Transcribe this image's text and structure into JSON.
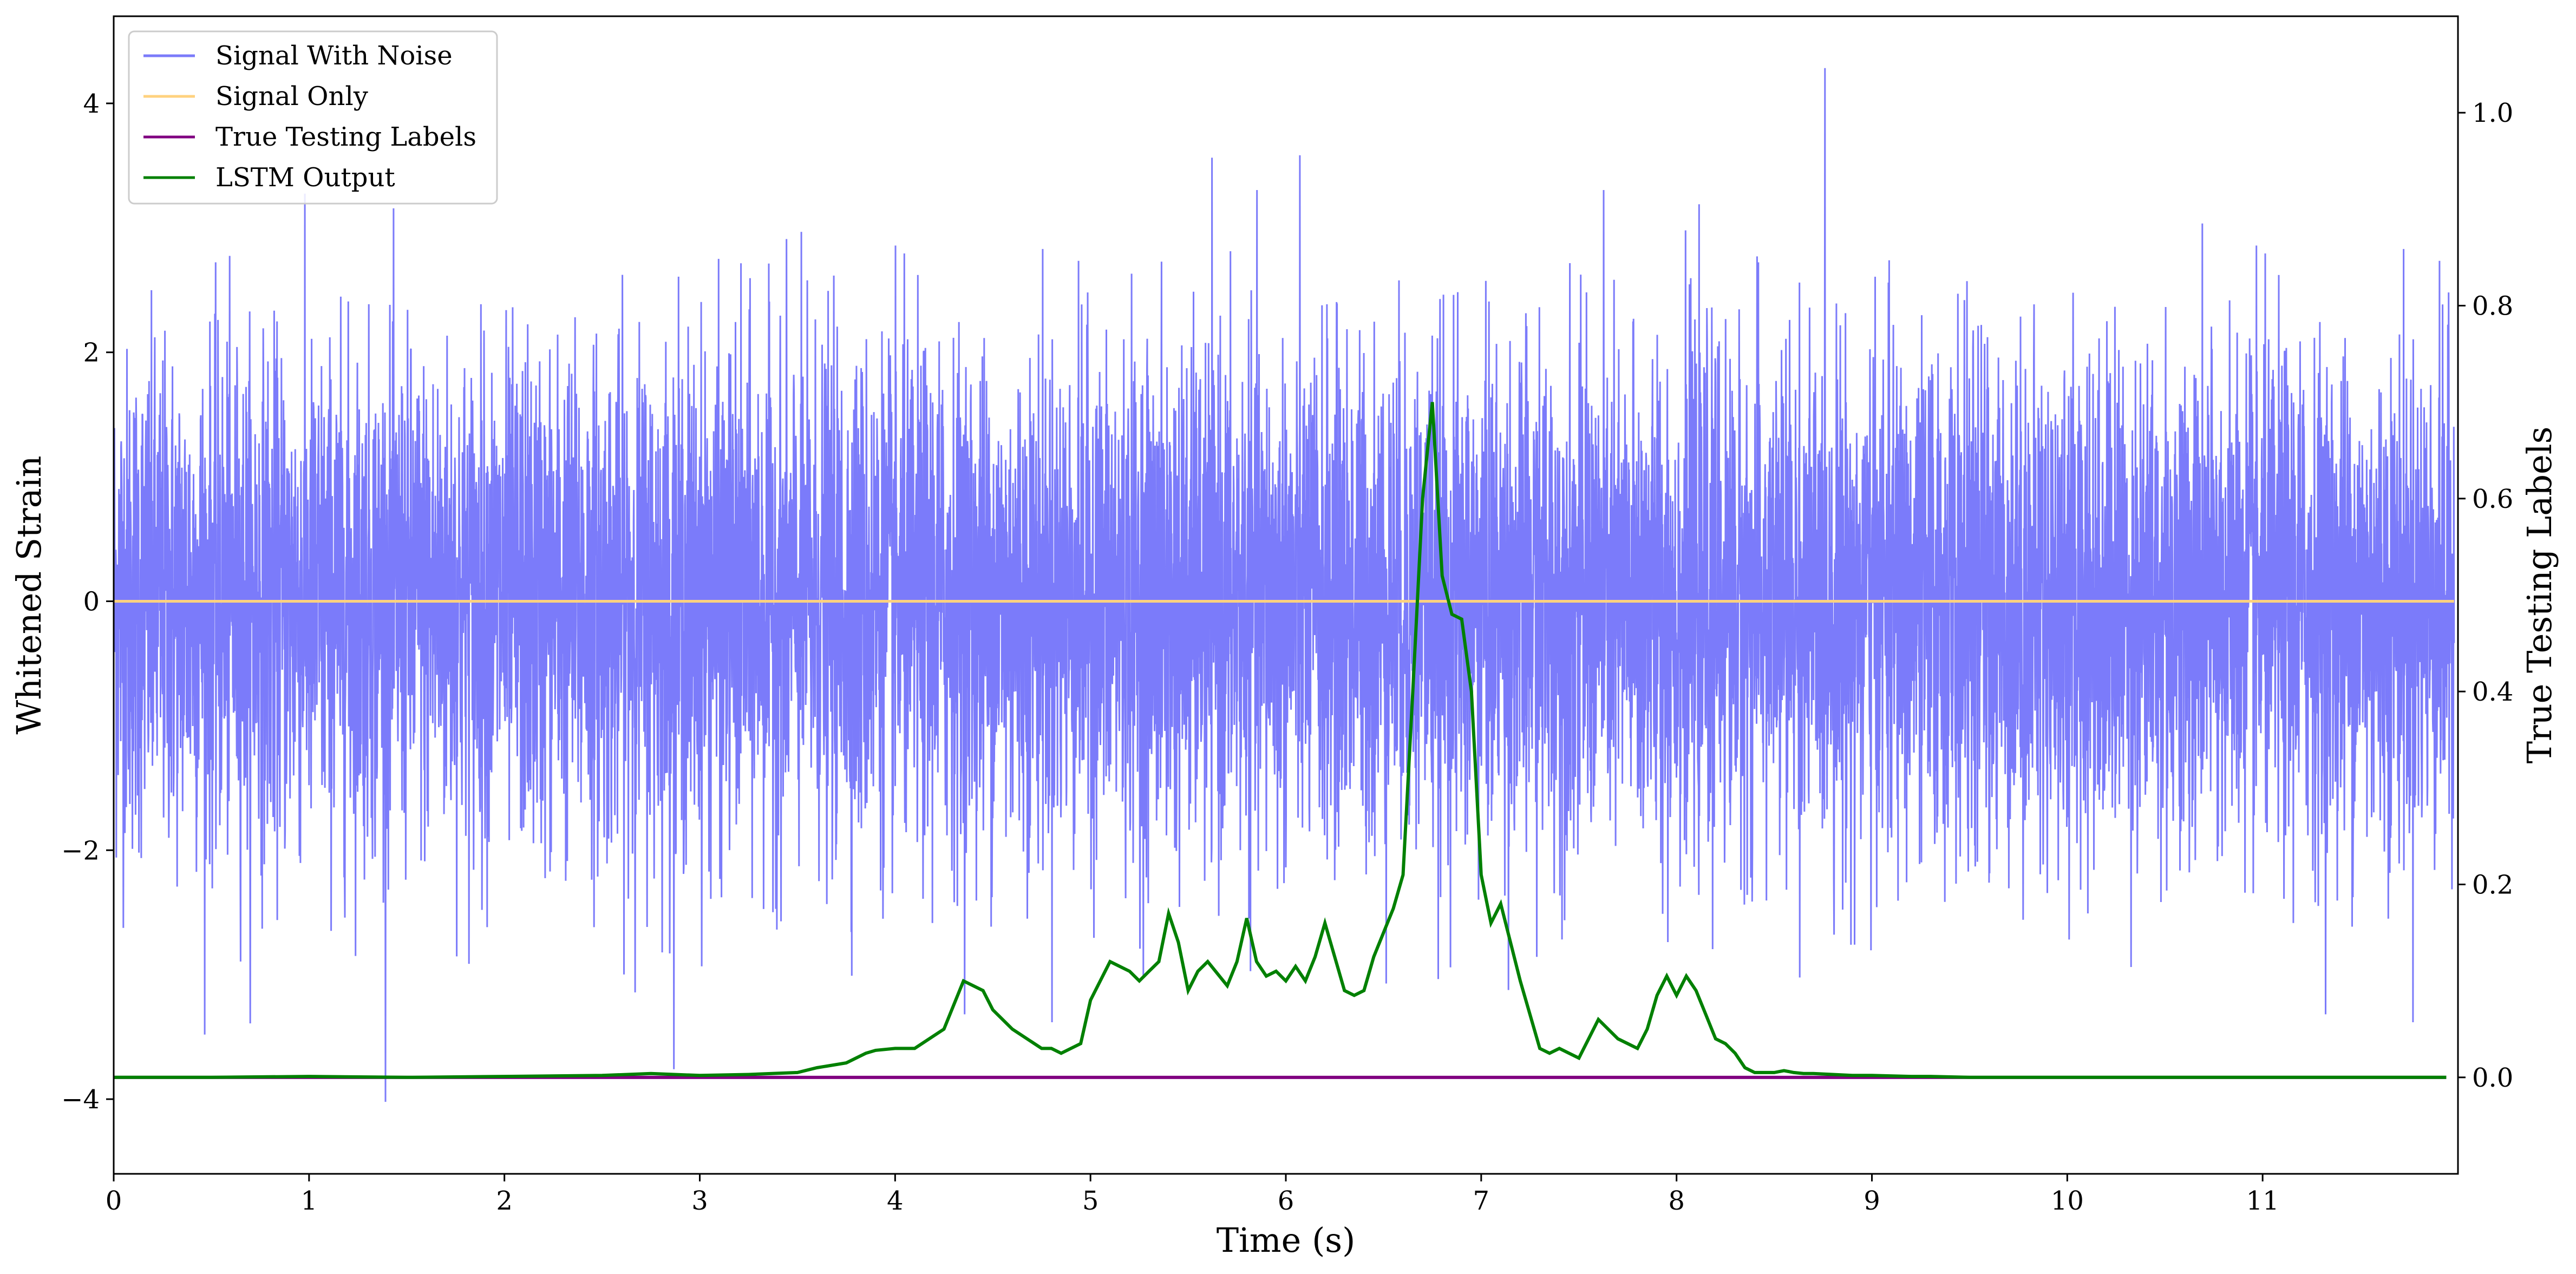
{
  "chart_data": {
    "type": "line",
    "xlabel": "Time (s)",
    "ylabel_left": "Whitened Strain",
    "ylabel_right": "True Testing Labels",
    "xlim": [
      0,
      12
    ],
    "ylim_left": [
      -4.6,
      4.7
    ],
    "ylim_right": [
      -0.1,
      1.1
    ],
    "x_ticks": [
      0,
      1,
      2,
      3,
      4,
      5,
      6,
      7,
      8,
      9,
      10,
      11
    ],
    "y_ticks_left": [
      -4,
      -2,
      0,
      2,
      4
    ],
    "y_ticks_right": [
      0.0,
      0.2,
      0.4,
      0.6,
      0.8,
      1.0
    ],
    "y_tick_labels_left": [
      "−4",
      "−2",
      "0",
      "2",
      "4"
    ],
    "y_tick_labels_right": [
      "0.0",
      "0.2",
      "0.4",
      "0.6",
      "0.8",
      "1.0"
    ],
    "grid": false,
    "legend_position": "top-left",
    "legend": [
      "Signal With Noise",
      "Signal Only",
      "True Testing Labels",
      "LSTM Output"
    ],
    "series": [
      {
        "name": "Signal With Noise",
        "axis": "left",
        "color": "#7b7bfa",
        "kind": "noise",
        "mean": 0.0,
        "typical_range": [
          -2.5,
          2.5
        ],
        "extreme_range": [
          -4.2,
          4.3
        ]
      },
      {
        "name": "Signal Only",
        "axis": "left",
        "color": "#ffd27f",
        "x": [
          0,
          12
        ],
        "y": [
          0,
          0
        ]
      },
      {
        "name": "True Testing Labels",
        "axis": "right",
        "color": "#800080",
        "x": [
          0,
          12
        ],
        "y": [
          0,
          0
        ]
      },
      {
        "name": "LSTM Output",
        "axis": "right",
        "color": "#008000",
        "x": [
          0,
          0.5,
          1.0,
          1.5,
          2.0,
          2.5,
          2.75,
          3.0,
          3.25,
          3.5,
          3.6,
          3.75,
          3.85,
          3.9,
          4.0,
          4.1,
          4.25,
          4.35,
          4.45,
          4.5,
          4.6,
          4.75,
          4.8,
          4.85,
          4.95,
          5.0,
          5.1,
          5.2,
          5.25,
          5.3,
          5.35,
          5.4,
          5.45,
          5.5,
          5.55,
          5.6,
          5.7,
          5.75,
          5.8,
          5.85,
          5.9,
          5.95,
          6.0,
          6.05,
          6.1,
          6.15,
          6.2,
          6.3,
          6.35,
          6.4,
          6.45,
          6.5,
          6.55,
          6.6,
          6.65,
          6.7,
          6.75,
          6.8,
          6.85,
          6.9,
          6.95,
          7.0,
          7.05,
          7.1,
          7.2,
          7.3,
          7.35,
          7.4,
          7.45,
          7.5,
          7.55,
          7.6,
          7.7,
          7.75,
          7.8,
          7.85,
          7.9,
          7.95,
          8.0,
          8.05,
          8.1,
          8.15,
          8.2,
          8.25,
          8.3,
          8.35,
          8.4,
          8.5,
          8.55,
          8.6,
          8.65,
          8.7,
          8.8,
          8.9,
          9.0,
          9.2,
          9.3,
          9.5,
          10.0,
          10.5,
          11.0,
          11.5,
          11.94
        ],
        "y": [
          0.0,
          0.0,
          0.001,
          0.0,
          0.001,
          0.002,
          0.004,
          0.002,
          0.003,
          0.005,
          0.01,
          0.015,
          0.025,
          0.028,
          0.03,
          0.03,
          0.05,
          0.1,
          0.09,
          0.07,
          0.05,
          0.03,
          0.03,
          0.025,
          0.035,
          0.08,
          0.12,
          0.11,
          0.1,
          0.11,
          0.12,
          0.17,
          0.14,
          0.09,
          0.11,
          0.12,
          0.095,
          0.12,
          0.165,
          0.12,
          0.105,
          0.11,
          0.1,
          0.115,
          0.1,
          0.125,
          0.16,
          0.09,
          0.085,
          0.09,
          0.125,
          0.15,
          0.175,
          0.21,
          0.4,
          0.6,
          0.7,
          0.52,
          0.48,
          0.475,
          0.4,
          0.21,
          0.16,
          0.18,
          0.1,
          0.03,
          0.025,
          0.03,
          0.025,
          0.02,
          0.04,
          0.06,
          0.04,
          0.035,
          0.03,
          0.05,
          0.085,
          0.105,
          0.085,
          0.105,
          0.09,
          0.065,
          0.04,
          0.035,
          0.025,
          0.01,
          0.005,
          0.005,
          0.007,
          0.005,
          0.004,
          0.004,
          0.003,
          0.002,
          0.002,
          0.001,
          0.001,
          0.0,
          0.0,
          0.0,
          0.0,
          0.0,
          0.0
        ]
      }
    ]
  }
}
